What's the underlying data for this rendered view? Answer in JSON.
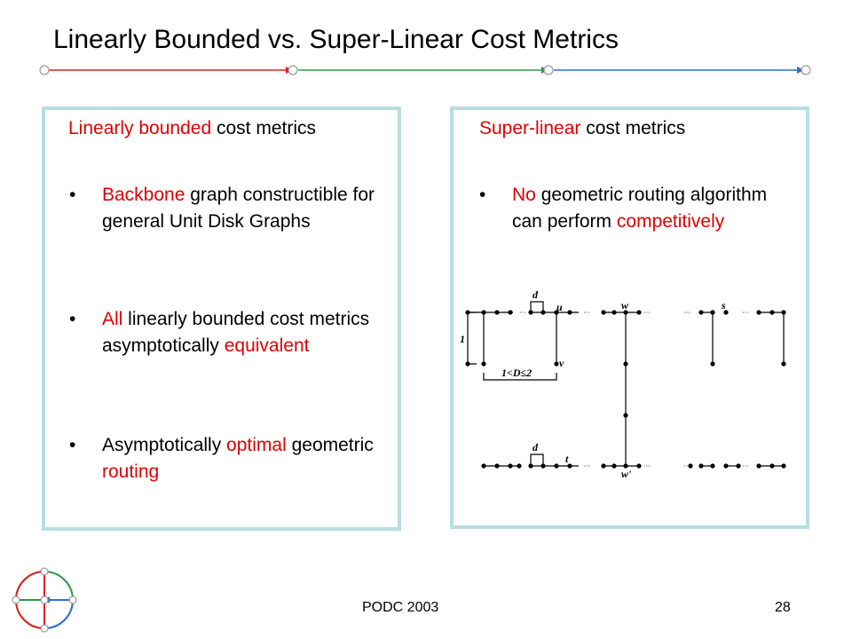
{
  "slide": {
    "title": "Linearly Bounded vs. Super-Linear Cost Metrics",
    "footer_center": "PODC 2003",
    "page_number": "28"
  },
  "left_box": {
    "heading_red": "Linearly bounded",
    "heading_rest": " cost metrics",
    "bullet_char": "•",
    "bullets": [
      {
        "red": "Backbone",
        "rest": " graph constructible for general Unit Disk Graphs"
      },
      {
        "red": "All",
        "rest": " linearly bounded cost metrics asymptotically ",
        "red2": "equivalent"
      },
      {
        "pre": "Asymptotically ",
        "red": "optimal",
        "mid": " geometric ",
        "red2": "routing"
      }
    ]
  },
  "right_box": {
    "heading_red": "Super-linear",
    "heading_rest": " cost metrics",
    "bullets": [
      {
        "red": "No",
        "rest": " geometric routing algorithm can perform ",
        "red2": "competitively"
      }
    ],
    "diagram_labels": {
      "d_top": "d",
      "u": "u",
      "w_top": "w",
      "s": "s",
      "one": "1",
      "v": "v",
      "range": "1<D≤2",
      "d_bottom": "d",
      "t": "t",
      "w_bottom": "w'"
    }
  },
  "colors": {
    "accent_red": "#e00000",
    "box_border": "#b8dde3",
    "line_red": "#e02020",
    "line_green": "#2e9a48",
    "line_blue": "#2f6fd6"
  }
}
